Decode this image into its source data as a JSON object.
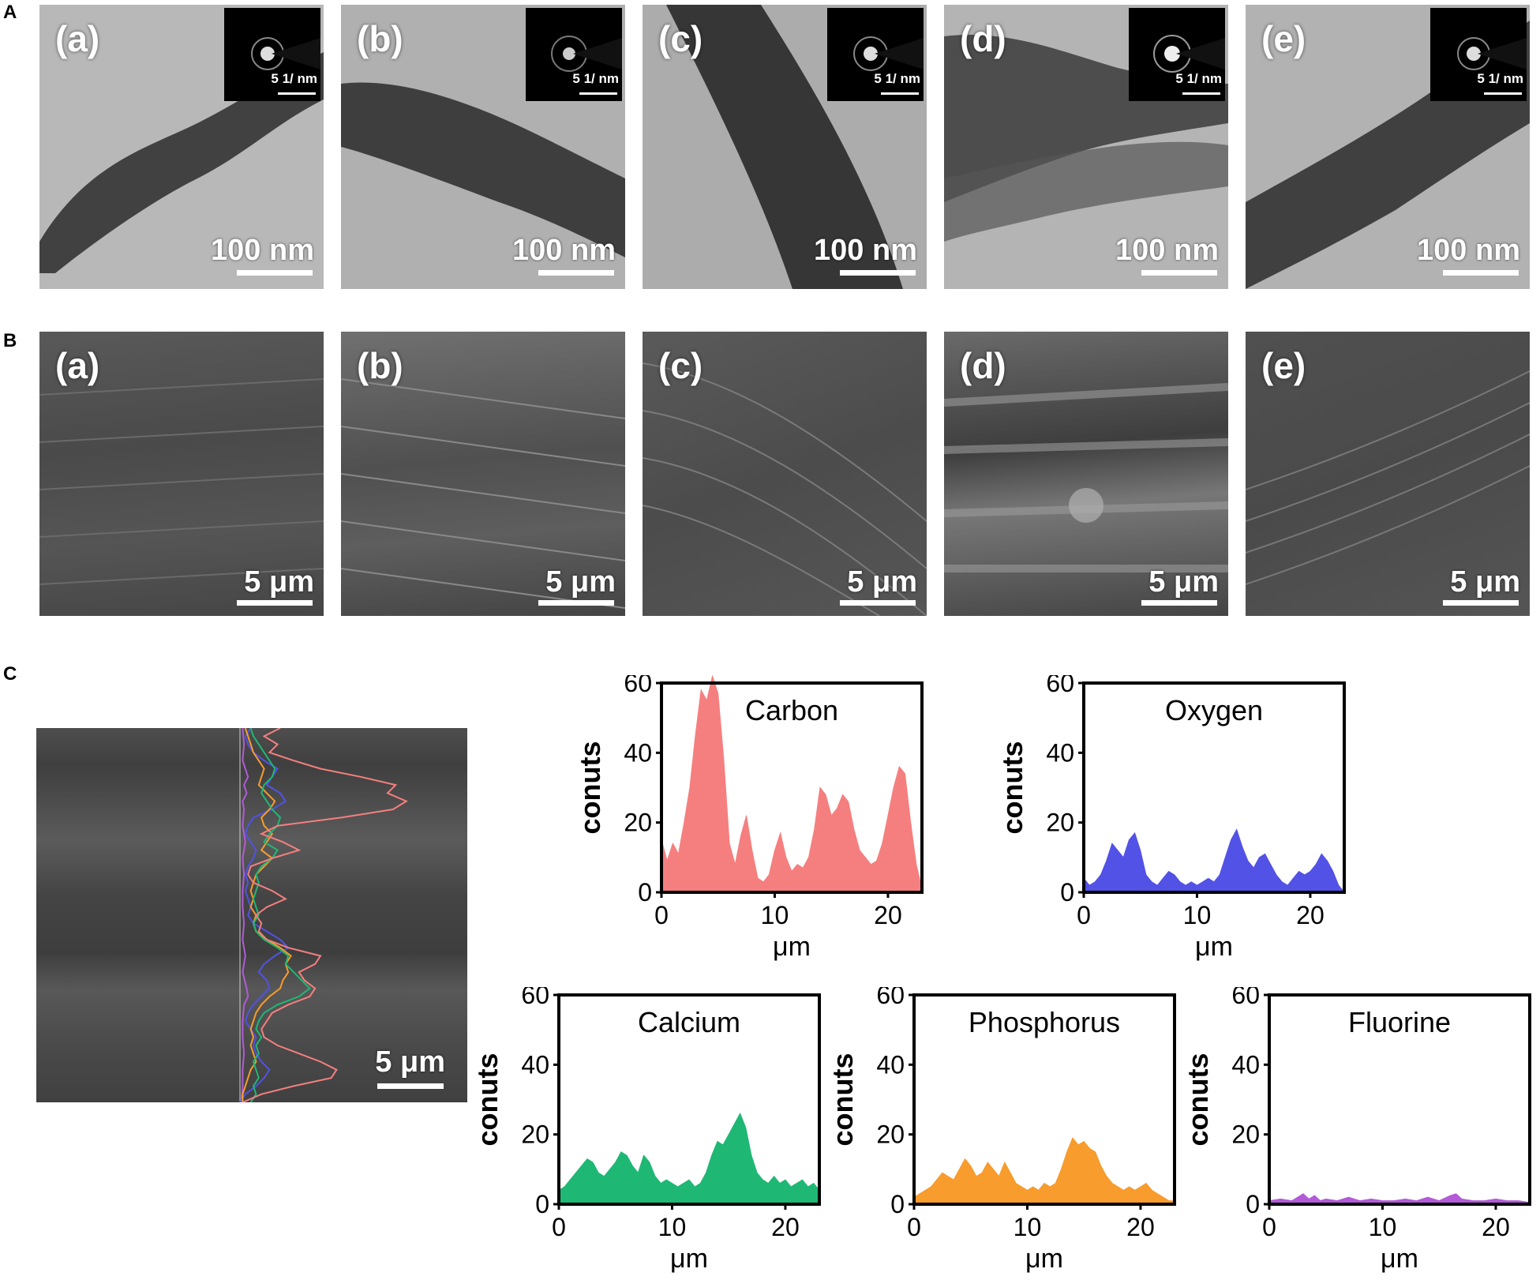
{
  "section_labels": {
    "A": "A",
    "B": "B",
    "C": "C"
  },
  "tem_panels": [
    {
      "label": "(a)",
      "scale": "100 nm",
      "saed": "5 1/ nm"
    },
    {
      "label": "(b)",
      "scale": "100 nm",
      "saed": "5 1/ nm"
    },
    {
      "label": "(c)",
      "scale": "100 nm",
      "saed": "5 1/ nm"
    },
    {
      "label": "(d)",
      "scale": "100 nm",
      "saed": "5 1/ nm"
    },
    {
      "label": "(e)",
      "scale": "100 nm",
      "saed": "5 1/ nm"
    }
  ],
  "sem_panels": [
    {
      "label": "(a)",
      "scale": "5 μm"
    },
    {
      "label": "(b)",
      "scale": "5 μm"
    },
    {
      "label": "(c)",
      "scale": "5 μm"
    },
    {
      "label": "(d)",
      "scale": "5 μm"
    },
    {
      "label": "(e)",
      "scale": "5 μm"
    }
  ],
  "linescan_image": {
    "scale": "5 μm"
  },
  "chart_data": [
    {
      "type": "area",
      "title": "Carbon",
      "xlabel": "μm",
      "ylabel": "conuts",
      "xlim": [
        0,
        23
      ],
      "ylim": [
        0,
        60
      ],
      "xticks": [
        0,
        10,
        20
      ],
      "yticks": [
        0,
        20,
        40,
        60
      ],
      "color": "#f57f7f",
      "points": [
        [
          0,
          15
        ],
        [
          0.5,
          9
        ],
        [
          1,
          14
        ],
        [
          1.5,
          11
        ],
        [
          2,
          20
        ],
        [
          2.5,
          30
        ],
        [
          3,
          45
        ],
        [
          3.5,
          58
        ],
        [
          4,
          55
        ],
        [
          4.5,
          62
        ],
        [
          5,
          57
        ],
        [
          5.5,
          38
        ],
        [
          6,
          14
        ],
        [
          6.5,
          8
        ],
        [
          7,
          16
        ],
        [
          7.5,
          22
        ],
        [
          8,
          12
        ],
        [
          8.5,
          4
        ],
        [
          9,
          3
        ],
        [
          9.5,
          5
        ],
        [
          10,
          12
        ],
        [
          10.5,
          17
        ],
        [
          11,
          10
        ],
        [
          11.5,
          6
        ],
        [
          12,
          8
        ],
        [
          12.5,
          7
        ],
        [
          13,
          10
        ],
        [
          13.5,
          18
        ],
        [
          14,
          30
        ],
        [
          14.5,
          28
        ],
        [
          15,
          22
        ],
        [
          15.5,
          24
        ],
        [
          16,
          28
        ],
        [
          16.5,
          26
        ],
        [
          17,
          18
        ],
        [
          17.5,
          12
        ],
        [
          18,
          10
        ],
        [
          18.5,
          8
        ],
        [
          19,
          9
        ],
        [
          19.5,
          14
        ],
        [
          20,
          22
        ],
        [
          20.5,
          30
        ],
        [
          21,
          36
        ],
        [
          21.5,
          34
        ],
        [
          22,
          20
        ],
        [
          22.5,
          8
        ],
        [
          23,
          1
        ]
      ]
    },
    {
      "type": "area",
      "title": "Oxygen",
      "xlabel": "μm",
      "ylabel": "conuts",
      "xlim": [
        0,
        23
      ],
      "ylim": [
        0,
        60
      ],
      "xticks": [
        0,
        10,
        20
      ],
      "yticks": [
        0,
        20,
        40,
        60
      ],
      "color": "#5252e6",
      "points": [
        [
          0,
          4
        ],
        [
          0.5,
          2
        ],
        [
          1,
          3
        ],
        [
          1.5,
          5
        ],
        [
          2,
          9
        ],
        [
          2.5,
          14
        ],
        [
          3,
          12
        ],
        [
          3.5,
          10
        ],
        [
          4,
          15
        ],
        [
          4.5,
          17
        ],
        [
          5,
          12
        ],
        [
          5.5,
          5
        ],
        [
          6,
          3
        ],
        [
          6.5,
          2
        ],
        [
          7,
          4
        ],
        [
          7.5,
          6
        ],
        [
          8,
          5
        ],
        [
          8.5,
          3
        ],
        [
          9,
          2
        ],
        [
          9.5,
          3
        ],
        [
          10,
          2
        ],
        [
          10.5,
          3
        ],
        [
          11,
          4
        ],
        [
          11.5,
          3
        ],
        [
          12,
          5
        ],
        [
          12.5,
          10
        ],
        [
          13,
          15
        ],
        [
          13.5,
          18
        ],
        [
          14,
          13
        ],
        [
          14.5,
          9
        ],
        [
          15,
          7
        ],
        [
          15.5,
          10
        ],
        [
          16,
          11
        ],
        [
          16.5,
          8
        ],
        [
          17,
          5
        ],
        [
          17.5,
          3
        ],
        [
          18,
          2
        ],
        [
          18.5,
          4
        ],
        [
          19,
          6
        ],
        [
          19.5,
          5
        ],
        [
          20,
          6
        ],
        [
          20.5,
          8
        ],
        [
          21,
          11
        ],
        [
          21.5,
          9
        ],
        [
          22,
          6
        ],
        [
          22.5,
          2
        ],
        [
          23,
          0
        ]
      ]
    },
    {
      "type": "area",
      "title": "Calcium",
      "xlabel": "μm",
      "ylabel": "conuts",
      "xlim": [
        0,
        23
      ],
      "ylim": [
        0,
        60
      ],
      "xticks": [
        0,
        10,
        20
      ],
      "yticks": [
        0,
        20,
        40,
        60
      ],
      "color": "#1eb874",
      "points": [
        [
          0,
          4
        ],
        [
          0.5,
          5
        ],
        [
          1,
          7
        ],
        [
          1.5,
          9
        ],
        [
          2,
          11
        ],
        [
          2.5,
          13
        ],
        [
          3,
          12
        ],
        [
          3.5,
          9
        ],
        [
          4,
          8
        ],
        [
          4.5,
          10
        ],
        [
          5,
          12
        ],
        [
          5.5,
          15
        ],
        [
          6,
          14
        ],
        [
          6.5,
          11
        ],
        [
          7,
          9
        ],
        [
          7.5,
          14
        ],
        [
          8,
          12
        ],
        [
          8.5,
          8
        ],
        [
          9,
          6
        ],
        [
          9.5,
          7
        ],
        [
          10,
          6
        ],
        [
          10.5,
          5
        ],
        [
          11,
          6
        ],
        [
          11.5,
          7
        ],
        [
          12,
          5
        ],
        [
          12.5,
          6
        ],
        [
          13,
          9
        ],
        [
          13.5,
          14
        ],
        [
          14,
          18
        ],
        [
          14.5,
          17
        ],
        [
          15,
          20
        ],
        [
          15.5,
          23
        ],
        [
          16,
          26
        ],
        [
          16.5,
          22
        ],
        [
          17,
          14
        ],
        [
          17.5,
          9
        ],
        [
          18,
          7
        ],
        [
          18.5,
          6
        ],
        [
          19,
          8
        ],
        [
          19.5,
          6
        ],
        [
          20,
          7
        ],
        [
          20.5,
          5
        ],
        [
          21,
          6
        ],
        [
          21.5,
          7
        ],
        [
          22,
          5
        ],
        [
          22.5,
          6
        ],
        [
          23,
          4
        ]
      ]
    },
    {
      "type": "area",
      "title": "Phosphorus",
      "xlabel": "μm",
      "ylabel": "conuts",
      "xlim": [
        0,
        23
      ],
      "ylim": [
        0,
        60
      ],
      "xticks": [
        0,
        10,
        20
      ],
      "yticks": [
        0,
        20,
        40,
        60
      ],
      "color": "#f79c2d",
      "points": [
        [
          0,
          2
        ],
        [
          0.5,
          3
        ],
        [
          1,
          4
        ],
        [
          1.5,
          5
        ],
        [
          2,
          7
        ],
        [
          2.5,
          9
        ],
        [
          3,
          8
        ],
        [
          3.5,
          7
        ],
        [
          4,
          10
        ],
        [
          4.5,
          13
        ],
        [
          5,
          11
        ],
        [
          5.5,
          8
        ],
        [
          6,
          9
        ],
        [
          6.5,
          12
        ],
        [
          7,
          10
        ],
        [
          7.5,
          8
        ],
        [
          8,
          12
        ],
        [
          8.5,
          9
        ],
        [
          9,
          6
        ],
        [
          9.5,
          5
        ],
        [
          10,
          4
        ],
        [
          10.5,
          5
        ],
        [
          11,
          4
        ],
        [
          11.5,
          6
        ],
        [
          12,
          5
        ],
        [
          12.5,
          6
        ],
        [
          13,
          10
        ],
        [
          13.5,
          15
        ],
        [
          14,
          19
        ],
        [
          14.5,
          17
        ],
        [
          15,
          18
        ],
        [
          15.5,
          16
        ],
        [
          16,
          15
        ],
        [
          16.5,
          11
        ],
        [
          17,
          8
        ],
        [
          17.5,
          6
        ],
        [
          18,
          5
        ],
        [
          18.5,
          4
        ],
        [
          19,
          5
        ],
        [
          19.5,
          4
        ],
        [
          20,
          5
        ],
        [
          20.5,
          6
        ],
        [
          21,
          4
        ],
        [
          21.5,
          3
        ],
        [
          22,
          2
        ],
        [
          22.5,
          1
        ],
        [
          23,
          1
        ]
      ]
    },
    {
      "type": "area",
      "title": "Fluorine",
      "xlabel": "μm",
      "ylabel": "conuts",
      "xlim": [
        0,
        23
      ],
      "ylim": [
        0,
        60
      ],
      "xticks": [
        0,
        10,
        20
      ],
      "yticks": [
        0,
        20,
        40,
        60
      ],
      "color": "#b35ad8",
      "points": [
        [
          0,
          1
        ],
        [
          1,
          1.5
        ],
        [
          2,
          1
        ],
        [
          2.5,
          2
        ],
        [
          3,
          3
        ],
        [
          3.5,
          1.5
        ],
        [
          4,
          2.5
        ],
        [
          4.5,
          1
        ],
        [
          5,
          1.5
        ],
        [
          6,
          1
        ],
        [
          7,
          2
        ],
        [
          8,
          1
        ],
        [
          9,
          1.5
        ],
        [
          10,
          1
        ],
        [
          11,
          1
        ],
        [
          12,
          1.5
        ],
        [
          13,
          1
        ],
        [
          14,
          2
        ],
        [
          15,
          1
        ],
        [
          16,
          2.5
        ],
        [
          16.5,
          3
        ],
        [
          17,
          1.5
        ],
        [
          18,
          1
        ],
        [
          19,
          1
        ],
        [
          20,
          1.5
        ],
        [
          21,
          1
        ],
        [
          22,
          1
        ],
        [
          23,
          0.5
        ]
      ]
    }
  ]
}
